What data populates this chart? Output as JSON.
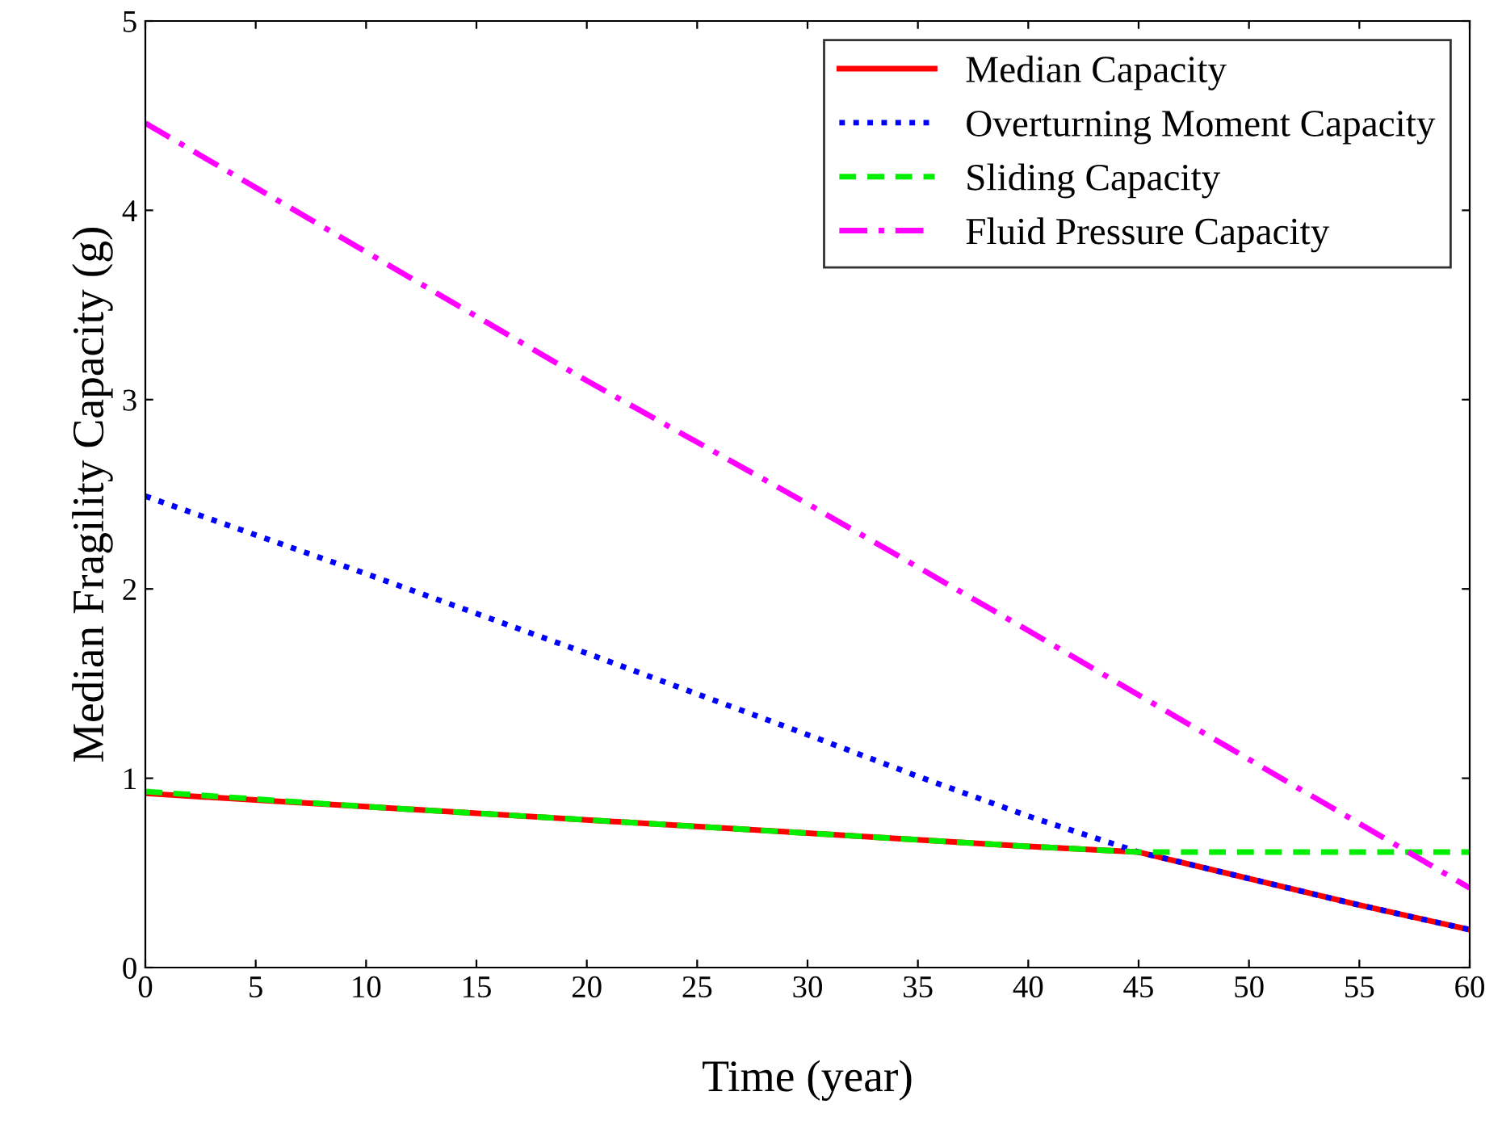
{
  "chart_data": {
    "type": "line",
    "xlabel": "Time (year)",
    "ylabel": "Median Fragility Capacity (g)",
    "xlim": [
      0,
      60
    ],
    "ylim": [
      0,
      5
    ],
    "xticks": [
      0,
      5,
      10,
      15,
      20,
      25,
      30,
      35,
      40,
      45,
      50,
      55,
      60
    ],
    "yticks": [
      0,
      1,
      2,
      3,
      4,
      5
    ],
    "grid": false,
    "legend": "top right",
    "series": [
      {
        "name": "Median Capacity",
        "color": "#ff0000",
        "line_style": "solid",
        "x": [
          0,
          10,
          20,
          30,
          40,
          45,
          50,
          55,
          60
        ],
        "values": [
          0.92,
          0.85,
          0.78,
          0.71,
          0.64,
          0.61,
          0.47,
          0.33,
          0.2
        ]
      },
      {
        "name": "Overturning Moment Capacity",
        "color": "#0000ff",
        "line_style": "dotted",
        "x": [
          0,
          10,
          20,
          30,
          35,
          40,
          45,
          50,
          55,
          60
        ],
        "values": [
          2.49,
          2.08,
          1.66,
          1.23,
          1.01,
          0.8,
          0.61,
          0.47,
          0.33,
          0.2
        ]
      },
      {
        "name": "Sliding Capacity",
        "color": "#00ee00",
        "line_style": "dashed",
        "x": [
          0,
          10,
          20,
          30,
          40,
          45,
          50,
          55,
          60
        ],
        "values": [
          0.93,
          0.85,
          0.78,
          0.71,
          0.64,
          0.61,
          0.61,
          0.61,
          0.61
        ]
      },
      {
        "name": "Fluid Pressure Capacity",
        "color": "#ff00ff",
        "line_style": "dashdot",
        "x": [
          0,
          10,
          20,
          30,
          40,
          50,
          60
        ],
        "values": [
          4.46,
          3.78,
          3.1,
          2.45,
          1.78,
          1.1,
          0.42
        ]
      }
    ]
  }
}
